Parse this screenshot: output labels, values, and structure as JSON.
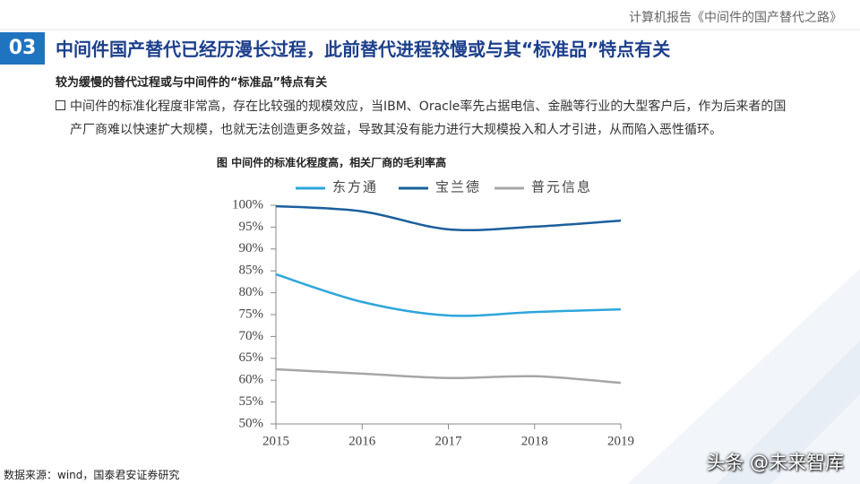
{
  "header": {
    "report": "计算机报告《中间件的国产替代之路》",
    "section": "03",
    "title": "中间件国产替代已经历漫长过程，此前替代进程较慢或与其“标准品”特点有关"
  },
  "subtitle": "较为缓慢的替代过程或与中间件的“标准品”特点有关",
  "bullet": [
    "中间件的标准化程度非常高，存在比较强的规模效应，当IBM、Oracle率先占据电信、金融等行业的大型客户后，作为后来者的国",
    "产厂商难以快速扩大规模，也就无法创造更多效益，导致其没有能力进行大规模投入和人才引进，从而陷入恶性循环。"
  ],
  "chart_data": {
    "type": "line",
    "title": "图 中间件的标准化程度高，相关厂商的毛利率高",
    "categories": [
      "2015",
      "2016",
      "2017",
      "2018",
      "2019"
    ],
    "series": [
      {
        "name": "东方通",
        "color": "#2ea6dc",
        "values": [
          84.2,
          77.9,
          74.8,
          75.6,
          76.2
        ]
      },
      {
        "name": "宝兰德",
        "color": "#1a5f9c",
        "values": [
          99.8,
          98.6,
          94.5,
          95.1,
          96.5
        ]
      },
      {
        "name": "普元信息",
        "color": "#a6a6a6",
        "values": [
          62.5,
          61.5,
          60.5,
          60.9,
          59.4
        ]
      }
    ],
    "ylim": [
      50,
      100
    ],
    "yticks": [
      {
        "value": 50,
        "label": "50%"
      },
      {
        "value": 55,
        "label": "55%"
      },
      {
        "value": 60,
        "label": "60%"
      },
      {
        "value": 65,
        "label": "65%"
      },
      {
        "value": 70,
        "label": "70%"
      },
      {
        "value": 75,
        "label": "75%"
      },
      {
        "value": 80,
        "label": "80%"
      },
      {
        "value": 85,
        "label": "85%"
      },
      {
        "value": 90,
        "label": "90%"
      },
      {
        "value": 95,
        "label": "95%"
      },
      {
        "value": 100,
        "label": "100%"
      }
    ],
    "legend": "top",
    "grid": false
  },
  "source": "数据来源：wind，国泰君安证券研究",
  "watermark": "头条 @未来智库"
}
